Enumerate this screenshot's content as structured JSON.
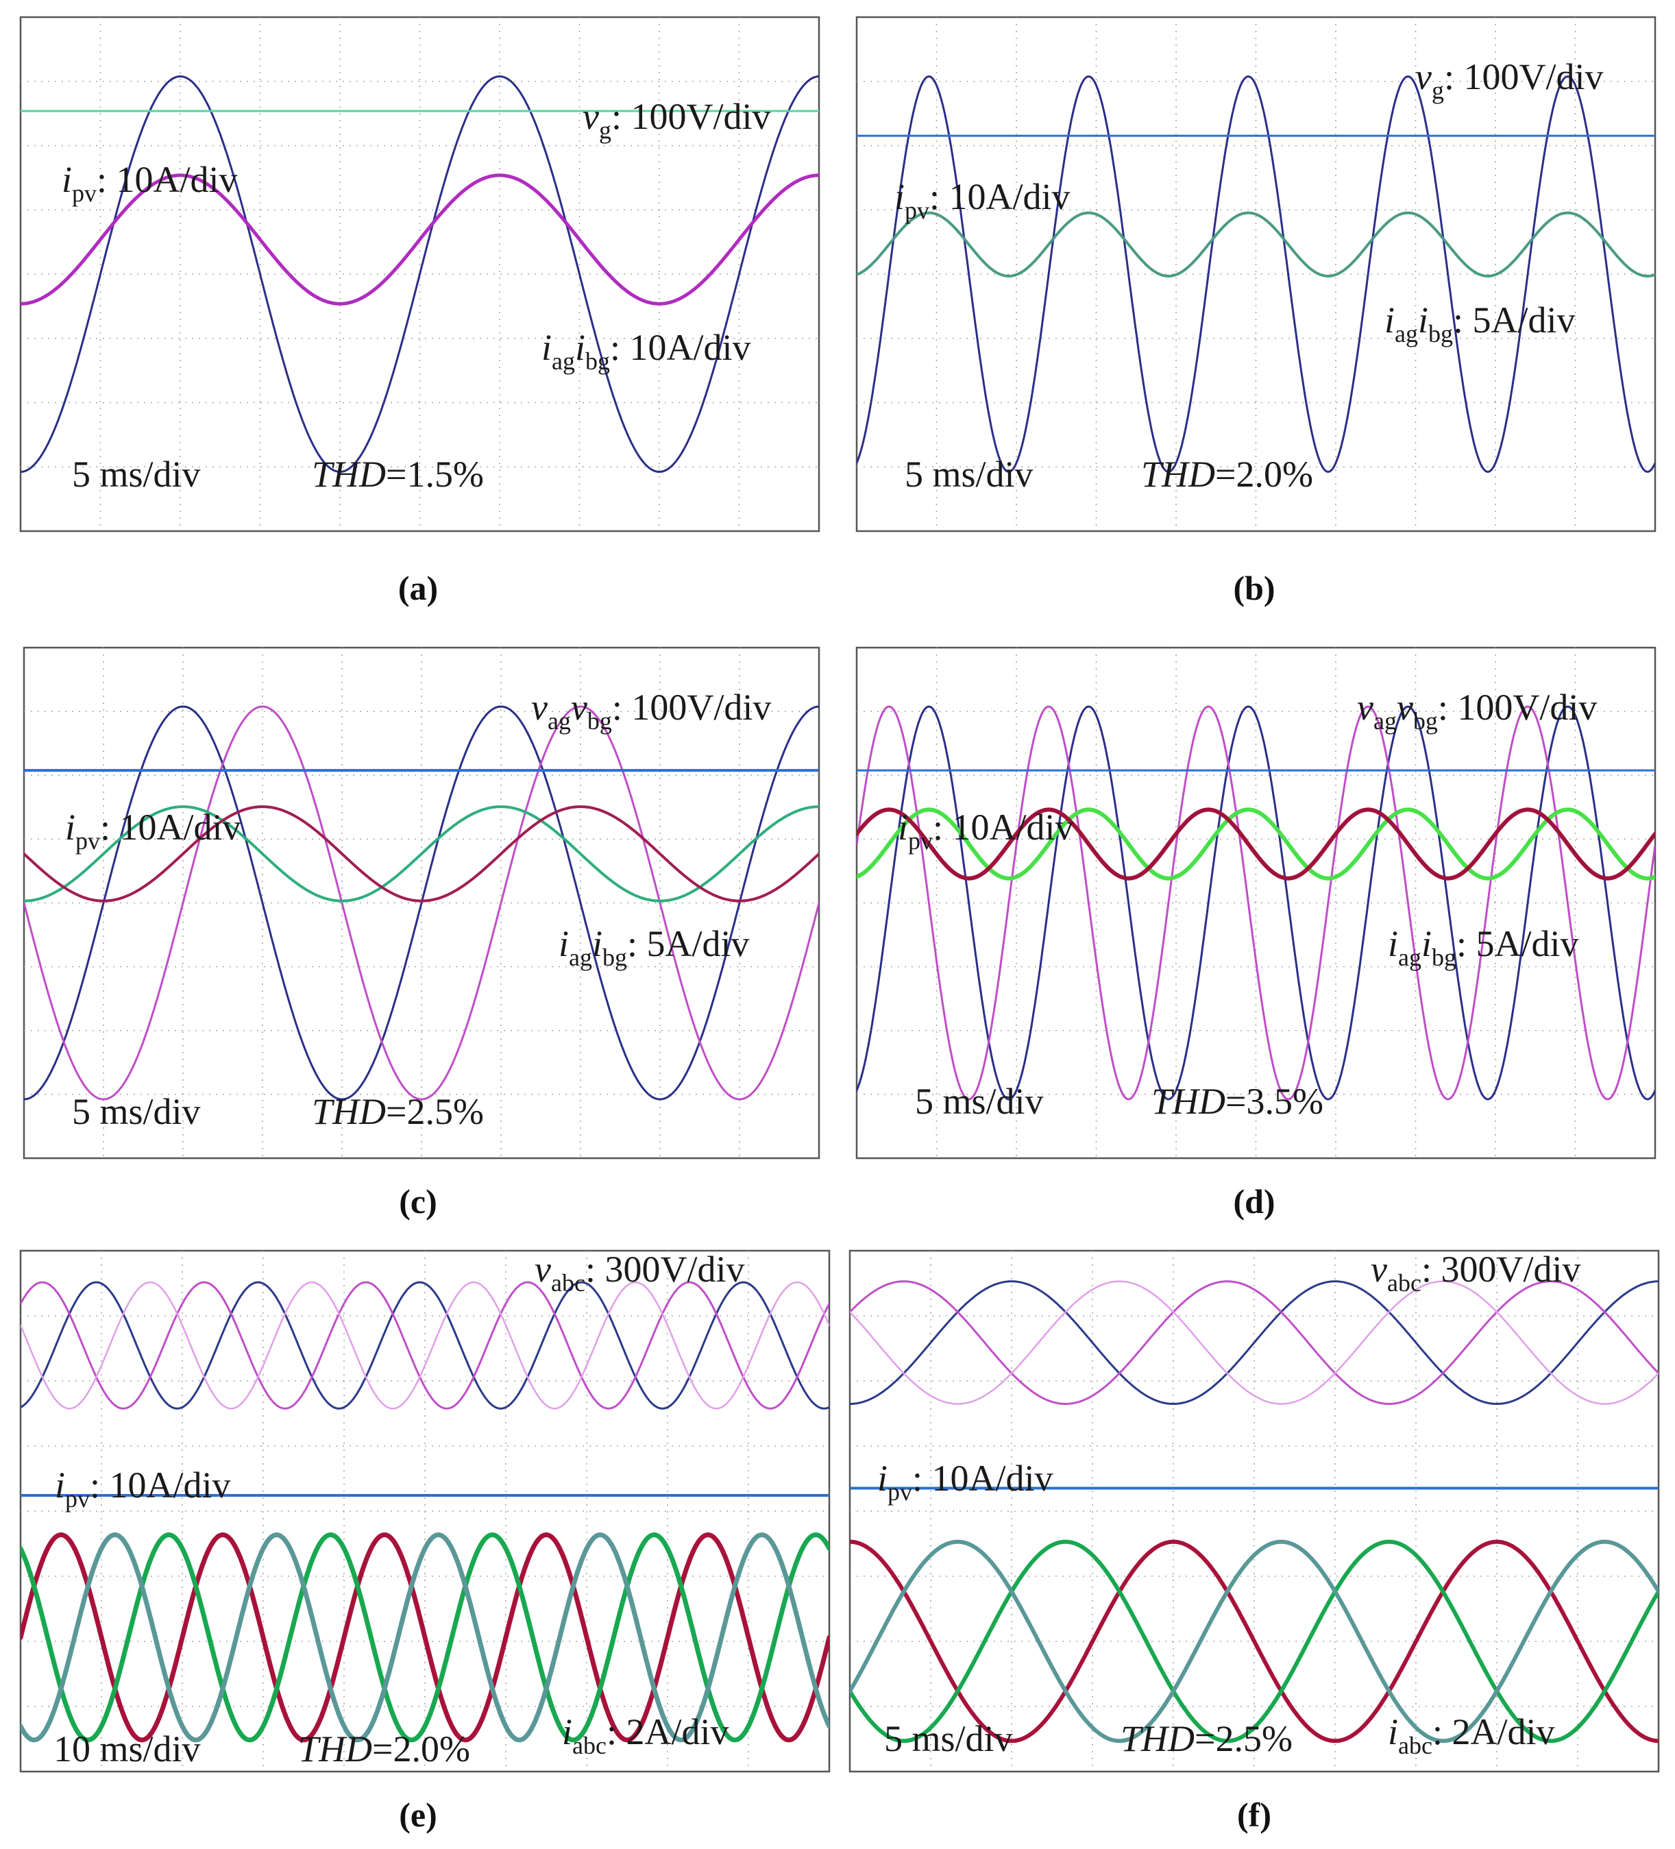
{
  "chart_data": [
    {
      "type": "line",
      "caption": "(a)",
      "time_scale": "5 ms/div",
      "thd": "1.5",
      "scale_labels": [
        {
          "sym": "v",
          "sub": "g",
          "text": ": 100V/div"
        },
        {
          "sym": "i",
          "sub": "pv",
          "text": ": 10A/div"
        },
        {
          "sym": "i",
          "sub": "ag",
          "sym2": "i",
          "sub2": "bg",
          "text": ": 10A/div"
        }
      ],
      "series": [
        {
          "color": "#2a2f88",
          "width": 3,
          "amplitude": 2.0,
          "offset": 0.0,
          "periods": 2.5,
          "phase": 0
        },
        {
          "color": "#52d8a0",
          "width": 3,
          "amplitude": 0,
          "offset": 1.65,
          "periods": 0,
          "phase": 0
        },
        {
          "color": "#b02cc0",
          "width": 5,
          "amplitude": 0.65,
          "offset": 0.35,
          "periods": 2.5,
          "phase": 0
        }
      ]
    },
    {
      "type": "line",
      "caption": "(b)",
      "time_scale": "5 ms/div",
      "thd": "2.0",
      "scale_labels": [
        {
          "sym": "v",
          "sub": "g",
          "text": ": 100V/div"
        },
        {
          "sym": "i",
          "sub": "pv",
          "text": ": 10A/div"
        },
        {
          "sym": "i",
          "sub": "ag",
          "sym2": "i",
          "sub2": "bg",
          "text": ": 5A/div"
        }
      ],
      "series": [
        {
          "color": "#2a2f88",
          "width": 3,
          "amplitude": 2.0,
          "offset": 0.0,
          "periods": 5.0,
          "phase": 0.3
        },
        {
          "color": "#2d6fd0",
          "width": 3,
          "amplitude": 0,
          "offset": 1.4,
          "periods": 0,
          "phase": 0
        },
        {
          "color": "#4b9b84",
          "width": 4,
          "amplitude": 0.32,
          "offset": 0.3,
          "periods": 5.0,
          "phase": 0.3
        }
      ]
    },
    {
      "type": "line",
      "caption": "(c)",
      "time_scale": "5 ms/div",
      "thd": "2.5",
      "scale_labels": [
        {
          "sym": "v",
          "sub": "ag",
          "sym2": "v",
          "sub2": "bg",
          "text": ": 100V/div"
        },
        {
          "sym": "i",
          "sub": "pv",
          "text": ": 10A/div"
        },
        {
          "sym": "i",
          "sub": "ag",
          "sym2": "i",
          "sub2": "bg",
          "text": ": 5A/div"
        }
      ],
      "series": [
        {
          "color": "#2a2f88",
          "width": 3,
          "amplitude": 2.0,
          "offset": 0.0,
          "periods": 2.5,
          "phase": 0
        },
        {
          "color": "#c04ec8",
          "width": 3,
          "amplitude": 2.0,
          "offset": 0.0,
          "periods": 2.5,
          "phase": -1.5708
        },
        {
          "color": "#2d6fd0",
          "width": 4,
          "amplitude": 0,
          "offset": 1.35,
          "periods": 0,
          "phase": 0
        },
        {
          "color": "#2fae7e",
          "width": 4,
          "amplitude": 0.48,
          "offset": 0.5,
          "periods": 2.5,
          "phase": 0
        },
        {
          "color": "#a01e52",
          "width": 4,
          "amplitude": 0.48,
          "offset": 0.5,
          "periods": 2.5,
          "phase": -1.5708
        }
      ]
    },
    {
      "type": "line",
      "caption": "(d)",
      "time_scale": "5 ms/div",
      "thd": "3.5",
      "scale_labels": [
        {
          "sym": "v",
          "sub": "ag",
          "sym2": "v",
          "sub2": "bg",
          "text": ": 100V/div"
        },
        {
          "sym": "i",
          "sub": "pv",
          "text": ": 10A/div"
        },
        {
          "sym": "i",
          "sub": "ag",
          "sym2": "i",
          "sub2": "bg",
          "text": ": 5A/div"
        }
      ],
      "series": [
        {
          "color": "#2a2f88",
          "width": 3,
          "amplitude": 2.0,
          "offset": 0.0,
          "periods": 5.0,
          "phase": 0.3
        },
        {
          "color": "#c04ec8",
          "width": 3,
          "amplitude": 2.0,
          "offset": 0.0,
          "periods": 5.0,
          "phase": 1.87
        },
        {
          "color": "#2d6fd0",
          "width": 3,
          "amplitude": 0,
          "offset": 1.35,
          "periods": 0,
          "phase": 0
        },
        {
          "color": "#48e048",
          "width": 6,
          "amplitude": 0.35,
          "offset": 0.6,
          "periods": 5.0,
          "phase": 0.3
        },
        {
          "color": "#a0123a",
          "width": 6,
          "amplitude": 0.35,
          "offset": 0.6,
          "periods": 5.0,
          "phase": 1.87
        }
      ]
    },
    {
      "type": "line",
      "caption": "(e)",
      "time_scale": "10 ms/div",
      "thd": "2.0",
      "scale_labels": [
        {
          "sym": "v",
          "sub": "abc",
          "text": ": 300V/div"
        },
        {
          "sym": "i",
          "sub": "pv",
          "text": ": 10A/div"
        },
        {
          "sym": "i",
          "sub": "abc",
          "text": ": 2A/div"
        }
      ],
      "series": [
        {
          "color": "#2a3a8a",
          "width": 3,
          "amplitude": 0.8,
          "offset": 3.2,
          "periods": 5.0,
          "phase": 0.2
        },
        {
          "color": "#c050c8",
          "width": 3,
          "amplitude": 0.8,
          "offset": 3.2,
          "periods": 5.0,
          "phase": 2.294
        },
        {
          "color": "#e0a0e8",
          "width": 2.5,
          "amplitude": 0.8,
          "offset": 3.2,
          "periods": 5.0,
          "phase": 4.389
        },
        {
          "color": "#2d6fd0",
          "width": 4,
          "amplitude": 0,
          "offset": 1.3,
          "periods": 0,
          "phase": 0
        },
        {
          "color": "#a8123a",
          "width": 7,
          "amplitude": 1.3,
          "offset": -0.5,
          "periods": 5.0,
          "phase": 1.57
        },
        {
          "color": "#18a850",
          "width": 7,
          "amplitude": 1.3,
          "offset": -0.5,
          "periods": 5.0,
          "phase": 3.665
        },
        {
          "color": "#5a9898",
          "width": 7,
          "amplitude": 1.3,
          "offset": -0.5,
          "periods": 5.0,
          "phase": 5.759
        }
      ]
    },
    {
      "type": "line",
      "caption": "(f)",
      "time_scale": "5 ms/div",
      "thd": "2.5",
      "scale_labels": [
        {
          "sym": "v",
          "sub": "abc",
          "text": ": 300V/div"
        },
        {
          "sym": "i",
          "sub": "pv",
          "text": ": 10A/div"
        },
        {
          "sym": "i",
          "sub": "abc",
          "text": ": 2A/div"
        }
      ],
      "series": [
        {
          "color": "#2a3a8a",
          "width": 3,
          "amplitude": 0.8,
          "offset": 3.2,
          "periods": 2.5,
          "phase": 0
        },
        {
          "color": "#c050c8",
          "width": 3,
          "amplitude": 0.8,
          "offset": 3.2,
          "periods": 2.5,
          "phase": 2.094
        },
        {
          "color": "#e0a0e8",
          "width": 2.5,
          "amplitude": 0.8,
          "offset": 3.2,
          "periods": 2.5,
          "phase": 4.189
        },
        {
          "color": "#2d6fd0",
          "width": 4,
          "amplitude": 0,
          "offset": 1.3,
          "periods": 0,
          "phase": 0
        },
        {
          "color": "#a8123a",
          "width": 6,
          "amplitude": 1.3,
          "offset": -0.7,
          "periods": 2.5,
          "phase": 3.14
        },
        {
          "color": "#18a850",
          "width": 6,
          "amplitude": 1.3,
          "offset": -0.7,
          "periods": 2.5,
          "phase": 5.236
        },
        {
          "color": "#5a9898",
          "width": 6,
          "amplitude": 1.3,
          "offset": -0.7,
          "periods": 2.5,
          "phase": 1.047
        }
      ]
    }
  ]
}
